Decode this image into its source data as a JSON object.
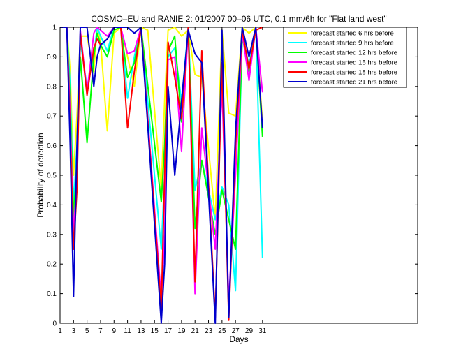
{
  "chart_data": {
    "type": "line",
    "title": "COSMO–EU and RANIE 2: 01/2007 00–06 UTC, 0.1 mm/6h for \"Flat land west\"",
    "xlabel": "Days",
    "ylabel": "Probability of detection",
    "xlim": [
      1,
      54
    ],
    "ylim": [
      0,
      1
    ],
    "xticks": [
      1,
      3,
      5,
      7,
      9,
      11,
      13,
      15,
      17,
      19,
      21,
      23,
      25,
      27,
      29,
      31
    ],
    "yticks": [
      0,
      0.1,
      0.2,
      0.3,
      0.4,
      0.5,
      0.6,
      0.7,
      0.8,
      0.9,
      1
    ],
    "ytick_labels": [
      "0",
      "0.1",
      "0.2",
      "0.3",
      "0.4",
      "0.5",
      "0.6",
      "0.7",
      "0.8",
      "0.9",
      "1"
    ],
    "grid": false,
    "legend_position": "top-right",
    "series": [
      {
        "name": "forecast started 6 hrs before",
        "color": "#ffff00",
        "x": [
          1,
          2,
          2.5,
          3,
          3.5,
          4,
          5,
          6,
          6.5,
          7,
          8,
          9,
          10,
          11,
          12,
          13,
          14,
          16,
          16.5,
          17,
          18,
          19,
          20,
          21,
          22,
          24,
          25,
          26,
          27,
          28,
          29,
          30,
          31
        ],
        "y": [
          1,
          1,
          0.85,
          0.5,
          0.7,
          0.97,
          0.97,
          0.85,
          1.0,
          0.95,
          0.65,
          0.98,
          1.0,
          0.9,
          0.8,
          1.0,
          0.99,
          0.45,
          0.75,
          0.99,
          1.0,
          0.97,
          0.99,
          0.84,
          0.83,
          0.35,
          0.99,
          0.71,
          0.7,
          1.0,
          0.98,
          1.0,
          0.68
        ]
      },
      {
        "name": "forecast started 9 hrs before",
        "color": "#00ffff",
        "x": [
          1,
          2,
          2.5,
          3,
          3.5,
          4,
          5,
          6,
          6.5,
          7,
          8,
          9,
          10,
          11,
          12,
          13,
          16,
          16.5,
          17,
          18,
          19,
          20,
          21,
          22,
          24,
          25,
          26,
          27,
          28,
          29,
          30,
          31
        ],
        "y": [
          1,
          1,
          0.8,
          0.4,
          0.6,
          0.95,
          0.8,
          0.9,
          1.0,
          0.97,
          0.92,
          1.0,
          1.0,
          0.76,
          0.9,
          1.0,
          0.25,
          0.5,
          0.9,
          0.93,
          0.75,
          1.0,
          0.45,
          0.55,
          0.35,
          0.46,
          0.4,
          0.11,
          0.98,
          0.87,
          1.0,
          0.22
        ]
      },
      {
        "name": "forecast started 12 hrs before",
        "color": "#00ff00",
        "x": [
          1,
          2,
          2.5,
          3,
          3.5,
          4,
          5,
          6,
          6.5,
          7,
          8,
          9,
          10,
          11,
          12,
          13,
          16,
          16.5,
          17,
          18,
          19,
          20,
          21,
          22,
          24,
          25,
          26,
          27,
          28,
          29,
          30,
          31
        ],
        "y": [
          1,
          1,
          0.75,
          0.35,
          0.55,
          0.9,
          0.61,
          0.9,
          0.98,
          0.94,
          0.9,
          0.99,
          1.0,
          0.83,
          0.88,
          1.0,
          0.41,
          0.6,
          0.92,
          0.97,
          0.68,
          1.0,
          0.32,
          0.55,
          0.3,
          0.45,
          0.35,
          0.25,
          0.97,
          0.85,
          1.0,
          0.63
        ]
      },
      {
        "name": "forecast started 15 hrs before",
        "color": "#ff00ff",
        "x": [
          1,
          2,
          2.5,
          3,
          3.5,
          4,
          5,
          6,
          6.5,
          7,
          8,
          9,
          10,
          11,
          12,
          13,
          16,
          16.5,
          17,
          18,
          19,
          20,
          21,
          22,
          24,
          25,
          26,
          27,
          28,
          29,
          30,
          31
        ],
        "y": [
          1,
          1,
          0.7,
          0.3,
          0.5,
          0.99,
          0.78,
          0.98,
          1.0,
          0.99,
          0.97,
          1.0,
          1.0,
          0.91,
          0.92,
          1.0,
          0.08,
          0.3,
          0.89,
          0.9,
          0.58,
          1.0,
          0.1,
          0.66,
          0.25,
          0.8,
          0.07,
          0.5,
          0.98,
          0.82,
          1.0,
          0.78
        ]
      },
      {
        "name": "forecast started 18 hrs before",
        "color": "#ff0000",
        "x": [
          1,
          2,
          2.5,
          3,
          3.5,
          4,
          5,
          6,
          6.5,
          7,
          8,
          9,
          10,
          11,
          12,
          13,
          16,
          16.5,
          17,
          18,
          19,
          20,
          21,
          22,
          24,
          25,
          26,
          27,
          28,
          29,
          30,
          31
        ],
        "y": [
          1,
          1,
          0.65,
          0.25,
          0.45,
          0.98,
          0.77,
          0.93,
          0.96,
          0.94,
          0.96,
          1.0,
          1.0,
          0.66,
          0.85,
          1.0,
          0.05,
          0.5,
          0.95,
          0.83,
          0.69,
          1.0,
          0.14,
          0.92,
          0.02,
          0.88,
          0.01,
          0.6,
          0.99,
          0.86,
          0.99,
          1.0
        ]
      },
      {
        "name": "forecast started 21 hrs before",
        "color": "#0000cd",
        "x": [
          1,
          2,
          2.5,
          3,
          3.5,
          4,
          5,
          6,
          6.5,
          7,
          8,
          9,
          10,
          11,
          12,
          13,
          16,
          16.5,
          17,
          18,
          19,
          20,
          21,
          22,
          24,
          25,
          26,
          27,
          28,
          29,
          30,
          31
        ],
        "y": [
          1,
          1,
          0.6,
          0.09,
          0.6,
          1.0,
          1.0,
          0.8,
          0.9,
          0.94,
          0.96,
          1.0,
          1.0,
          1.0,
          0.98,
          1.0,
          0.0,
          0.2,
          0.8,
          0.5,
          0.75,
          0.99,
          0.91,
          0.88,
          0.0,
          0.99,
          0.02,
          0.65,
          1.0,
          0.9,
          1.0,
          0.66
        ]
      }
    ]
  }
}
